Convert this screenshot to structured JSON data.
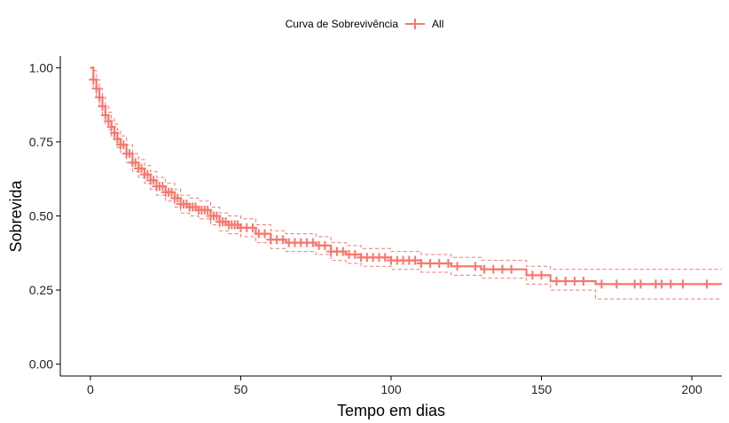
{
  "chart_data": {
    "type": "line",
    "title": "",
    "legend": {
      "title": "Curva de Sobrevivência",
      "placement": "top",
      "entries": [
        "All"
      ]
    },
    "xlabel": "Tempo em dias",
    "ylabel": "Sobrevida",
    "xlim": [
      -10,
      210
    ],
    "ylim": [
      -0.04,
      1.04
    ],
    "x_ticks": [
      0,
      50,
      100,
      150,
      200
    ],
    "y_ticks": [
      0.0,
      0.25,
      0.5,
      0.75,
      1.0
    ],
    "x_tick_labels": [
      "0",
      "50",
      "100",
      "150",
      "200"
    ],
    "y_tick_labels": [
      "0.00",
      "0.25",
      "0.50",
      "0.75",
      "1.00"
    ],
    "grid": false,
    "colors": {
      "series": "#F8766D",
      "axis": "#000000"
    },
    "series": [
      {
        "name": "All",
        "style": "step",
        "x": [
          0,
          1,
          2,
          3,
          4,
          5,
          6,
          7,
          8,
          9,
          10,
          12,
          14,
          16,
          18,
          20,
          22,
          25,
          28,
          30,
          33,
          36,
          40,
          43,
          46,
          50,
          55,
          60,
          65,
          70,
          75,
          80,
          85,
          90,
          100,
          110,
          120,
          130,
          140,
          145,
          153,
          165,
          168,
          210
        ],
        "survival": [
          1.0,
          0.96,
          0.93,
          0.9,
          0.87,
          0.84,
          0.82,
          0.8,
          0.78,
          0.76,
          0.74,
          0.71,
          0.68,
          0.66,
          0.64,
          0.62,
          0.6,
          0.58,
          0.56,
          0.54,
          0.53,
          0.52,
          0.5,
          0.48,
          0.47,
          0.46,
          0.44,
          0.42,
          0.41,
          0.41,
          0.4,
          0.38,
          0.37,
          0.36,
          0.35,
          0.34,
          0.33,
          0.32,
          0.32,
          0.3,
          0.28,
          0.28,
          0.27,
          0.27
        ],
        "lower_ci": [
          1.0,
          0.93,
          0.9,
          0.87,
          0.84,
          0.81,
          0.79,
          0.77,
          0.75,
          0.73,
          0.71,
          0.68,
          0.65,
          0.63,
          0.61,
          0.59,
          0.57,
          0.55,
          0.53,
          0.51,
          0.5,
          0.49,
          0.47,
          0.45,
          0.44,
          0.43,
          0.41,
          0.39,
          0.38,
          0.38,
          0.37,
          0.35,
          0.34,
          0.33,
          0.32,
          0.31,
          0.3,
          0.29,
          0.29,
          0.27,
          0.25,
          0.25,
          0.22,
          0.22
        ],
        "upper_ci": [
          1.0,
          0.99,
          0.96,
          0.93,
          0.9,
          0.87,
          0.85,
          0.83,
          0.81,
          0.79,
          0.77,
          0.74,
          0.71,
          0.69,
          0.67,
          0.65,
          0.63,
          0.61,
          0.59,
          0.57,
          0.56,
          0.55,
          0.53,
          0.51,
          0.5,
          0.49,
          0.47,
          0.45,
          0.44,
          0.44,
          0.43,
          0.41,
          0.4,
          0.39,
          0.38,
          0.37,
          0.36,
          0.35,
          0.35,
          0.33,
          0.32,
          0.32,
          0.32,
          0.32
        ],
        "censor_times": [
          1,
          2,
          3,
          4,
          5,
          6,
          7,
          8,
          9,
          10,
          11,
          12,
          13,
          14,
          15,
          16,
          17,
          18,
          19,
          20,
          21,
          22,
          23,
          24,
          25,
          26,
          27,
          28,
          29,
          30,
          31,
          32,
          33,
          34,
          35,
          36,
          37,
          38,
          39,
          40,
          41,
          42,
          43,
          44,
          45,
          46,
          47,
          48,
          49,
          50,
          52,
          54,
          56,
          58,
          60,
          62,
          64,
          66,
          68,
          70,
          72,
          74,
          76,
          78,
          80,
          82,
          84,
          86,
          88,
          90,
          92,
          94,
          96,
          98,
          100,
          102,
          104,
          106,
          108,
          110,
          113,
          116,
          119,
          122,
          128,
          131,
          134,
          137,
          140,
          147,
          150,
          155,
          158,
          161,
          164,
          170,
          175,
          181,
          183,
          188,
          190,
          193,
          197,
          205
        ]
      }
    ]
  }
}
